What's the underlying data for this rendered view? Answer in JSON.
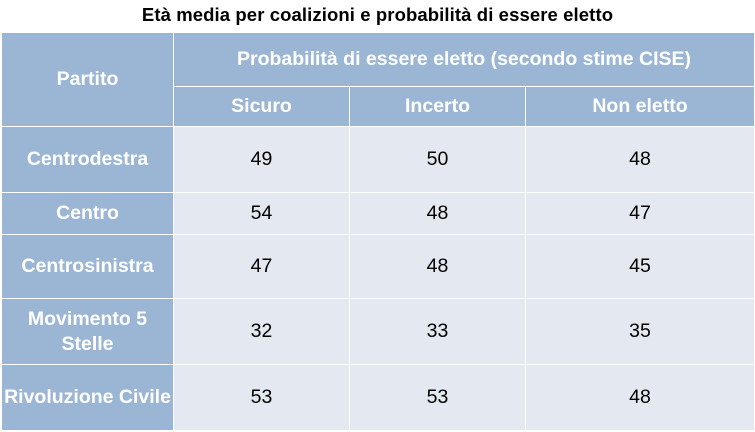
{
  "title": "Età media per coalizioni e probabilità di essere eletto",
  "header": {
    "party_label": "Partito",
    "group_label": "Probabilità di essere eletto (secondo stime CISE)",
    "columns": [
      "Sicuro",
      "Incerto",
      "Non eletto"
    ]
  },
  "rows": [
    {
      "party": "Centrodestra",
      "values": [
        "49",
        "50",
        "48"
      ]
    },
    {
      "party": "Centro",
      "values": [
        "54",
        "48",
        "47"
      ]
    },
    {
      "party": "Centrosinistra",
      "values": [
        "47",
        "48",
        "45"
      ]
    },
    {
      "party": "Movimento 5 Stelle",
      "values": [
        "32",
        "33",
        "35"
      ]
    },
    {
      "party": "Rivoluzione Civile",
      "values": [
        "53",
        "53",
        "48"
      ]
    }
  ],
  "chart_data": {
    "type": "table",
    "title": "Età media per coalizioni e probabilità di essere eletto",
    "columns": [
      "Partito",
      "Sicuro",
      "Incerto",
      "Non eletto"
    ],
    "rows": [
      [
        "Centrodestra",
        49,
        50,
        48
      ],
      [
        "Centro",
        54,
        48,
        47
      ],
      [
        "Centrosinistra",
        47,
        48,
        45
      ],
      [
        "Movimento 5 Stelle",
        32,
        33,
        35
      ],
      [
        "Rivoluzione Civile",
        53,
        53,
        48
      ]
    ]
  },
  "colors": {
    "header_bg": "#9bb6d4",
    "cell_bg": "#e4e9f1",
    "header_text": "#ffffff",
    "cell_text": "#000000"
  }
}
